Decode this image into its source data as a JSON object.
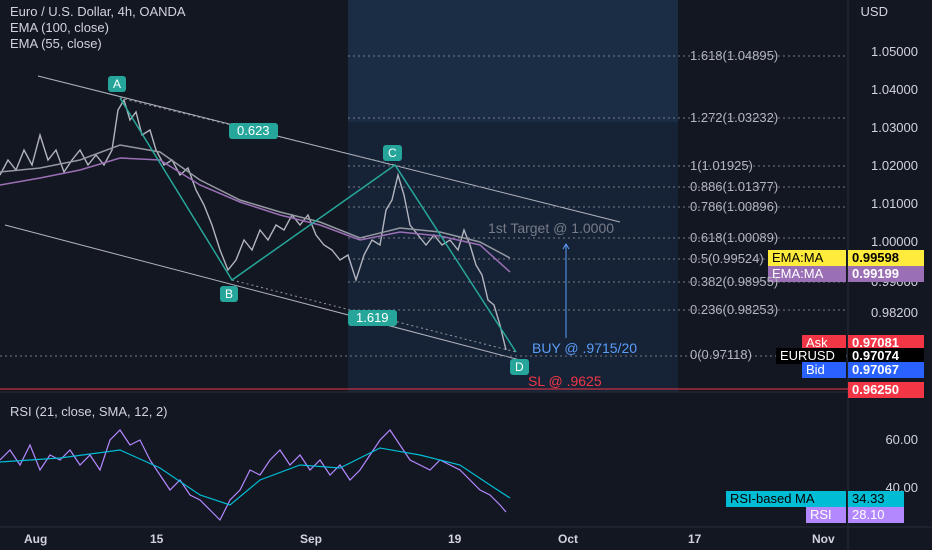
{
  "header": {
    "title": "Euro / U.S. Dollar, 4h, OANDA",
    "ema100": "EMA (100, close)",
    "ema55": "EMA (55, close)"
  },
  "currency": "USD",
  "price_axis": [
    "1.05000",
    "1.04000",
    "1.03000",
    "1.02000",
    "1.01000",
    "1.00000",
    "0.99000",
    "0.98200"
  ],
  "rsi_axis": [
    "60.00",
    "40.00"
  ],
  "x_axis": [
    "Aug",
    "15",
    "Sep",
    "19",
    "Oct",
    "17",
    "Nov"
  ],
  "fib_levels": [
    "1.618(1.04895)",
    "1.272(1.03232)",
    "1(1.01925)",
    "0.886(1.01377)",
    "0.786(1.00896)",
    "0.618(1.00089)",
    "0.5(0.99524)",
    "0.382(0.98955)",
    "0.236(0.98253)",
    "0(0.97118)"
  ],
  "pattern_points": {
    "a": "A",
    "b": "B",
    "c": "C",
    "d": "D"
  },
  "ratios": {
    "xab": "0.623",
    "bcd": "1.619"
  },
  "annotations": {
    "target": "1st Target @ 1.0000",
    "buy": "BUY @ .9715/20",
    "sl": "SL @ .9625"
  },
  "price_tags": {
    "ema1_label": "EMA:MA",
    "ema1_value": "0.99598",
    "ema2_label": "EMA:MA",
    "ema2_value": "0.99199",
    "ask_label": "Ask",
    "ask_value": "0.97081",
    "symbol_label": "EURUSD",
    "symbol_value": "0.97074",
    "bid_label": "Bid",
    "bid_value": "0.97067",
    "sl_value": "0.96250"
  },
  "rsi": {
    "title": "RSI (21, close, SMA, 12, 2)",
    "ma_label": "RSI-based MA",
    "ma_value": "34.33",
    "rsi_label": "RSI",
    "rsi_value": "28.10"
  },
  "colors": {
    "background": "#131722",
    "pattern": "#26a69a",
    "ema100": "#9b6fb5",
    "ema55": "#9598a1",
    "rsi": "#b388ff",
    "rsi_ma": "#00bcd4",
    "sl_red": "#f23645",
    "buy_blue": "#5b9cf6"
  }
}
